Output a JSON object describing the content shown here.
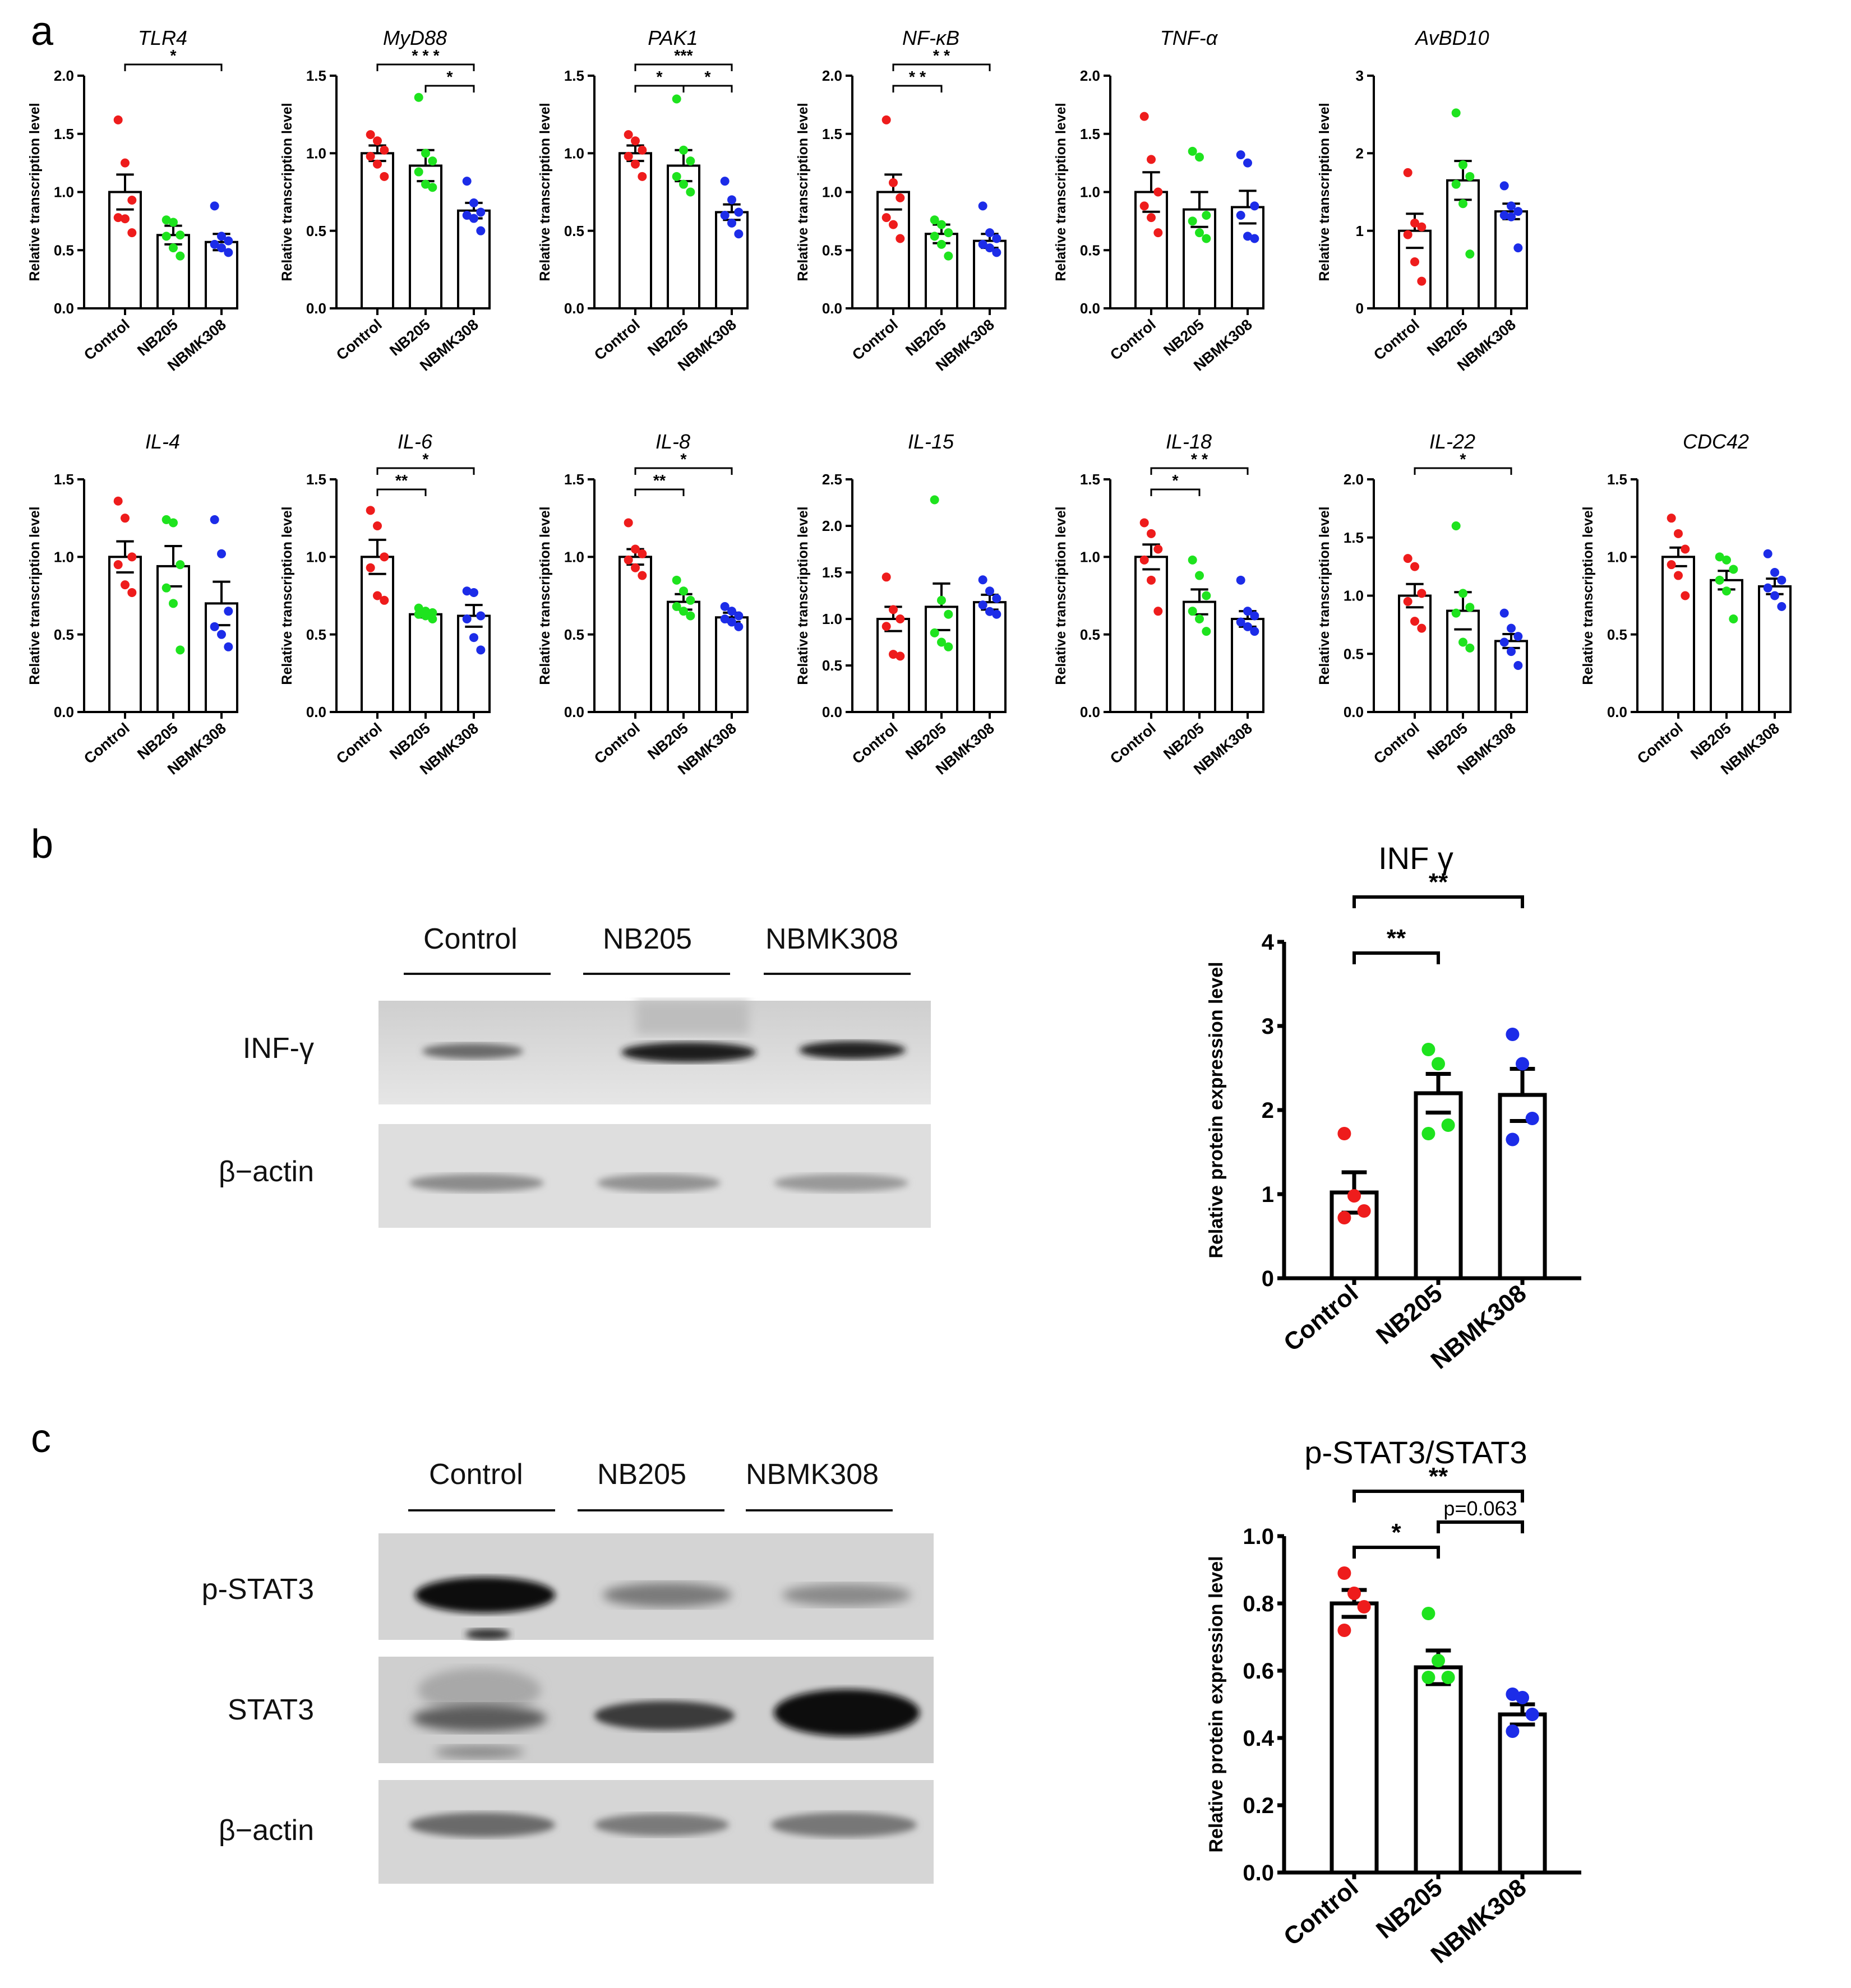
{
  "figure": {
    "panel_labels": [
      "a",
      "b",
      "c"
    ]
  },
  "colors": {
    "Control": "#ee1c1c",
    "NB205": "#1ee31e",
    "NBMK308": "#1c2ce8",
    "bar": "#000000"
  },
  "western_b": {
    "lanes": [
      "Control",
      "NB205",
      "NBMK308"
    ],
    "rows": [
      "INF-γ",
      "β−actin"
    ]
  },
  "western_c": {
    "lanes": [
      "Control",
      "NB205",
      "NBMK308"
    ],
    "rows": [
      "p-STAT3",
      "STAT3",
      "β−actin"
    ]
  },
  "chart_data": [
    {
      "id": "TLR4",
      "type": "bar",
      "title": "TLR4",
      "ylabel": "Relative transcription level",
      "categories": [
        "Control",
        "NB205",
        "NBMK308"
      ],
      "values": [
        1.0,
        0.63,
        0.57
      ],
      "sem": [
        0.15,
        0.08,
        0.07
      ],
      "ylim": [
        0,
        2.0
      ],
      "yticks": [
        "0.0",
        "0.5",
        "1.0",
        "1.5",
        "2.0"
      ],
      "points": [
        [
          1.62,
          1.25,
          0.93,
          0.78,
          0.77,
          0.65
        ],
        [
          0.76,
          0.74,
          0.63,
          0.62,
          0.52,
          0.45
        ],
        [
          0.88,
          0.62,
          0.58,
          0.55,
          0.52,
          0.48
        ]
      ],
      "sig": [
        {
          "from": 0,
          "to": 2,
          "label": "*"
        }
      ]
    },
    {
      "id": "MyD88",
      "type": "bar",
      "title": "MyD88",
      "ylabel": "Relative transcription level",
      "categories": [
        "Control",
        "NB205",
        "NBMK308"
      ],
      "values": [
        1.0,
        0.92,
        0.63
      ],
      "sem": [
        0.05,
        0.1,
        0.05
      ],
      "ylim": [
        0,
        1.5
      ],
      "yticks": [
        "0.0",
        "0.5",
        "1.0",
        "1.5"
      ],
      "points": [
        [
          1.12,
          1.08,
          1.02,
          0.98,
          0.93,
          0.85
        ],
        [
          1.36,
          1.0,
          0.95,
          0.88,
          0.8,
          0.78
        ],
        [
          0.82,
          0.68,
          0.62,
          0.6,
          0.58,
          0.5
        ]
      ],
      "sig": [
        {
          "from": 0,
          "to": 2,
          "label": "* * *"
        },
        {
          "from": 1,
          "to": 2,
          "label": "*"
        }
      ]
    },
    {
      "id": "PAK1",
      "type": "bar",
      "title": "PAK1",
      "ylabel": "Relative transcription level",
      "categories": [
        "Control",
        "NB205",
        "NBMK308"
      ],
      "values": [
        1.0,
        0.92,
        0.62
      ],
      "sem": [
        0.05,
        0.1,
        0.05
      ],
      "ylim": [
        0,
        1.5
      ],
      "yticks": [
        "0.0",
        "0.5",
        "1.0",
        "1.5"
      ],
      "points": [
        [
          1.12,
          1.08,
          1.02,
          0.98,
          0.93,
          0.85
        ],
        [
          1.35,
          1.02,
          0.95,
          0.85,
          0.8,
          0.75
        ],
        [
          0.82,
          0.7,
          0.62,
          0.6,
          0.55,
          0.48
        ]
      ],
      "sig": [
        {
          "from": 0,
          "to": 1,
          "label": "*"
        },
        {
          "from": 0,
          "to": 2,
          "label": "***"
        },
        {
          "from": 1,
          "to": 2,
          "label": "*"
        }
      ]
    },
    {
      "id": "NF-kB",
      "type": "bar",
      "title": "NF-κB",
      "ylabel": "Relative transcription level",
      "categories": [
        "Control",
        "NB205",
        "NBMK308"
      ],
      "values": [
        1.0,
        0.64,
        0.58
      ],
      "sem": [
        0.15,
        0.08,
        0.06
      ],
      "ylim": [
        0,
        2.0
      ],
      "yticks": [
        "0.0",
        "0.5",
        "1.0",
        "1.5",
        "2.0"
      ],
      "points": [
        [
          1.62,
          1.08,
          0.95,
          0.78,
          0.72,
          0.6
        ],
        [
          0.76,
          0.72,
          0.65,
          0.62,
          0.55,
          0.45
        ],
        [
          0.88,
          0.65,
          0.6,
          0.55,
          0.52,
          0.48
        ]
      ],
      "sig": [
        {
          "from": 0,
          "to": 1,
          "label": "* *"
        },
        {
          "from": 0,
          "to": 2,
          "label": "* *"
        }
      ]
    },
    {
      "id": "TNF-a",
      "type": "bar",
      "title": "TNF-α",
      "ylabel": "Relative transcription level",
      "categories": [
        "Control",
        "NB205",
        "NBMK308"
      ],
      "values": [
        1.0,
        0.85,
        0.87
      ],
      "sem": [
        0.17,
        0.15,
        0.14
      ],
      "ylim": [
        0,
        2.0
      ],
      "yticks": [
        "0.0",
        "0.5",
        "1.0",
        "1.5",
        "2.0"
      ],
      "points": [
        [
          1.65,
          1.28,
          1.0,
          0.88,
          0.78,
          0.65
        ],
        [
          1.35,
          1.3,
          0.8,
          0.75,
          0.65,
          0.6
        ],
        [
          1.32,
          1.25,
          0.88,
          0.8,
          0.62,
          0.6
        ]
      ],
      "sig": []
    },
    {
      "id": "AvBD10",
      "type": "bar",
      "title": "AvBD10",
      "ylabel": "Relative transcription level",
      "categories": [
        "Control",
        "NB205",
        "NBMK308"
      ],
      "values": [
        1.0,
        1.65,
        1.25
      ],
      "sem": [
        0.22,
        0.25,
        0.1
      ],
      "ylim": [
        0,
        3
      ],
      "yticks": [
        "0",
        "1",
        "2",
        "3"
      ],
      "points": [
        [
          1.75,
          1.1,
          1.05,
          0.95,
          0.6,
          0.35
        ],
        [
          2.52,
          1.85,
          1.7,
          1.6,
          1.35,
          0.7
        ],
        [
          1.58,
          1.32,
          1.25,
          1.2,
          1.18,
          0.78
        ]
      ],
      "sig": []
    },
    {
      "id": "IL-4",
      "type": "bar",
      "title": "IL-4",
      "ylabel": "Relative transcription level",
      "categories": [
        "Control",
        "NB205",
        "NBMK308"
      ],
      "values": [
        1.0,
        0.94,
        0.7
      ],
      "sem": [
        0.1,
        0.13,
        0.14
      ],
      "ylim": [
        0,
        1.5
      ],
      "yticks": [
        "0.0",
        "0.5",
        "1.0",
        "1.5"
      ],
      "points": [
        [
          1.36,
          1.25,
          1.0,
          0.95,
          0.82,
          0.77
        ],
        [
          1.24,
          1.22,
          0.95,
          0.8,
          0.7,
          0.4
        ],
        [
          1.24,
          1.02,
          0.65,
          0.55,
          0.5,
          0.42
        ]
      ],
      "sig": []
    },
    {
      "id": "IL-6",
      "type": "bar",
      "title": "IL-6",
      "ylabel": "Relative transcription level",
      "categories": [
        "Control",
        "NB205",
        "NBMK308"
      ],
      "values": [
        1.0,
        0.63,
        0.62
      ],
      "sem": [
        0.11,
        0.02,
        0.07
      ],
      "ylim": [
        0,
        1.5
      ],
      "yticks": [
        "0.0",
        "0.5",
        "1.0",
        "1.5"
      ],
      "points": [
        [
          1.3,
          1.2,
          1.0,
          0.93,
          0.75,
          0.72
        ],
        [
          0.67,
          0.65,
          0.64,
          0.63,
          0.62,
          0.6
        ],
        [
          0.78,
          0.77,
          0.62,
          0.6,
          0.48,
          0.4
        ]
      ],
      "sig": [
        {
          "from": 0,
          "to": 1,
          "label": "**"
        },
        {
          "from": 0,
          "to": 2,
          "label": "*"
        }
      ]
    },
    {
      "id": "IL-8",
      "type": "bar",
      "title": "IL-8",
      "ylabel": "Relative transcription level",
      "categories": [
        "Control",
        "NB205",
        "NBMK308"
      ],
      "values": [
        1.0,
        0.71,
        0.61
      ],
      "sem": [
        0.05,
        0.05,
        0.03
      ],
      "ylim": [
        0,
        1.5
      ],
      "yticks": [
        "0.0",
        "0.5",
        "1.0",
        "1.5"
      ],
      "points": [
        [
          1.22,
          1.05,
          1.02,
          0.98,
          0.93,
          0.88
        ],
        [
          0.85,
          0.78,
          0.72,
          0.68,
          0.65,
          0.62
        ],
        [
          0.68,
          0.65,
          0.62,
          0.6,
          0.58,
          0.55
        ]
      ],
      "sig": [
        {
          "from": 0,
          "to": 1,
          "label": "**"
        },
        {
          "from": 0,
          "to": 2,
          "label": "*"
        }
      ]
    },
    {
      "id": "IL-15",
      "type": "bar",
      "title": "IL-15",
      "ylabel": "Relative transcription level",
      "categories": [
        "Control",
        "NB205",
        "NBMK308"
      ],
      "values": [
        1.0,
        1.13,
        1.18
      ],
      "sem": [
        0.13,
        0.25,
        0.08
      ],
      "ylim": [
        0,
        2.5
      ],
      "yticks": [
        "0.0",
        "0.5",
        "1.0",
        "1.5",
        "2.0",
        "2.5"
      ],
      "points": [
        [
          1.45,
          1.1,
          1.0,
          0.92,
          0.62,
          0.6
        ],
        [
          2.28,
          1.2,
          1.05,
          0.85,
          0.75,
          0.7
        ],
        [
          1.42,
          1.3,
          1.22,
          1.15,
          1.08,
          1.05
        ]
      ],
      "sig": []
    },
    {
      "id": "IL-18",
      "type": "bar",
      "title": "IL-18",
      "ylabel": "Relative transcription level",
      "categories": [
        "Control",
        "NB205",
        "NBMK308"
      ],
      "values": [
        1.0,
        0.71,
        0.6
      ],
      "sem": [
        0.08,
        0.08,
        0.05
      ],
      "ylim": [
        0,
        1.5
      ],
      "yticks": [
        "0.0",
        "0.5",
        "1.0",
        "1.5"
      ],
      "points": [
        [
          1.22,
          1.15,
          1.05,
          0.98,
          0.85,
          0.65
        ],
        [
          0.98,
          0.88,
          0.75,
          0.65,
          0.6,
          0.52
        ],
        [
          0.85,
          0.65,
          0.62,
          0.58,
          0.55,
          0.52
        ]
      ],
      "sig": [
        {
          "from": 0,
          "to": 1,
          "label": "*"
        },
        {
          "from": 0,
          "to": 2,
          "label": "* *"
        }
      ]
    },
    {
      "id": "IL-22",
      "type": "bar",
      "title": "IL-22",
      "ylabel": "Relative transcription level",
      "categories": [
        "Control",
        "NB205",
        "NBMK308"
      ],
      "values": [
        1.0,
        0.87,
        0.61
      ],
      "sem": [
        0.1,
        0.16,
        0.06
      ],
      "ylim": [
        0,
        2.0
      ],
      "yticks": [
        "0.0",
        "0.5",
        "1.0",
        "1.5",
        "2.0"
      ],
      "points": [
        [
          1.32,
          1.25,
          1.02,
          0.95,
          0.78,
          0.72
        ],
        [
          1.6,
          1.02,
          0.9,
          0.85,
          0.6,
          0.55
        ],
        [
          0.85,
          0.72,
          0.65,
          0.6,
          0.52,
          0.4
        ]
      ],
      "sig": [
        {
          "from": 0,
          "to": 2,
          "label": "*"
        }
      ]
    },
    {
      "id": "CDC42",
      "type": "bar",
      "title": "CDC42",
      "ylabel": "Relative transcription level",
      "categories": [
        "Control",
        "NB205",
        "NBMK308"
      ],
      "values": [
        1.0,
        0.85,
        0.81
      ],
      "sem": [
        0.06,
        0.06,
        0.05
      ],
      "ylim": [
        0,
        1.5
      ],
      "yticks": [
        "0.0",
        "0.5",
        "1.0",
        "1.5"
      ],
      "points": [
        [
          1.25,
          1.15,
          1.05,
          0.95,
          0.88,
          0.75
        ],
        [
          1.0,
          0.98,
          0.92,
          0.85,
          0.78,
          0.6
        ],
        [
          1.02,
          0.9,
          0.85,
          0.8,
          0.75,
          0.68
        ]
      ],
      "sig": []
    },
    {
      "id": "INFg",
      "type": "bar",
      "title": "INF γ",
      "ylabel": "Relative protein expression level",
      "categories": [
        "Control",
        "NB205",
        "NBMK308"
      ],
      "values": [
        1.02,
        2.2,
        2.18
      ],
      "sem": [
        0.24,
        0.23,
        0.31
      ],
      "ylim": [
        0,
        4
      ],
      "yticks": [
        "0",
        "1",
        "2",
        "3",
        "4"
      ],
      "points": [
        [
          1.72,
          0.98,
          0.8,
          0.72
        ],
        [
          2.72,
          2.55,
          1.82,
          1.72
        ],
        [
          2.9,
          2.55,
          1.9,
          1.65
        ]
      ],
      "sig": [
        {
          "from": 0,
          "to": 1,
          "label": "**"
        },
        {
          "from": 0,
          "to": 2,
          "label": "**"
        }
      ]
    },
    {
      "id": "pSTAT3",
      "type": "bar",
      "title": "p-STAT3/STAT3",
      "ylabel": "Relative protein expression level",
      "categories": [
        "Control",
        "NB205",
        "NBMK308"
      ],
      "values": [
        0.8,
        0.61,
        0.47
      ],
      "sem": [
        0.04,
        0.05,
        0.03
      ],
      "ylim": [
        0,
        1.0
      ],
      "yticks": [
        "0.0",
        "0.2",
        "0.4",
        "0.6",
        "0.8",
        "1.0"
      ],
      "points": [
        [
          0.89,
          0.83,
          0.79,
          0.72
        ],
        [
          0.77,
          0.63,
          0.58,
          0.58
        ],
        [
          0.53,
          0.52,
          0.47,
          0.42
        ]
      ],
      "sig": [
        {
          "from": 0,
          "to": 1,
          "label": "*"
        },
        {
          "from": 0,
          "to": 2,
          "label": "**"
        },
        {
          "from": 1,
          "to": 2,
          "label": "p=0.063"
        }
      ]
    }
  ]
}
